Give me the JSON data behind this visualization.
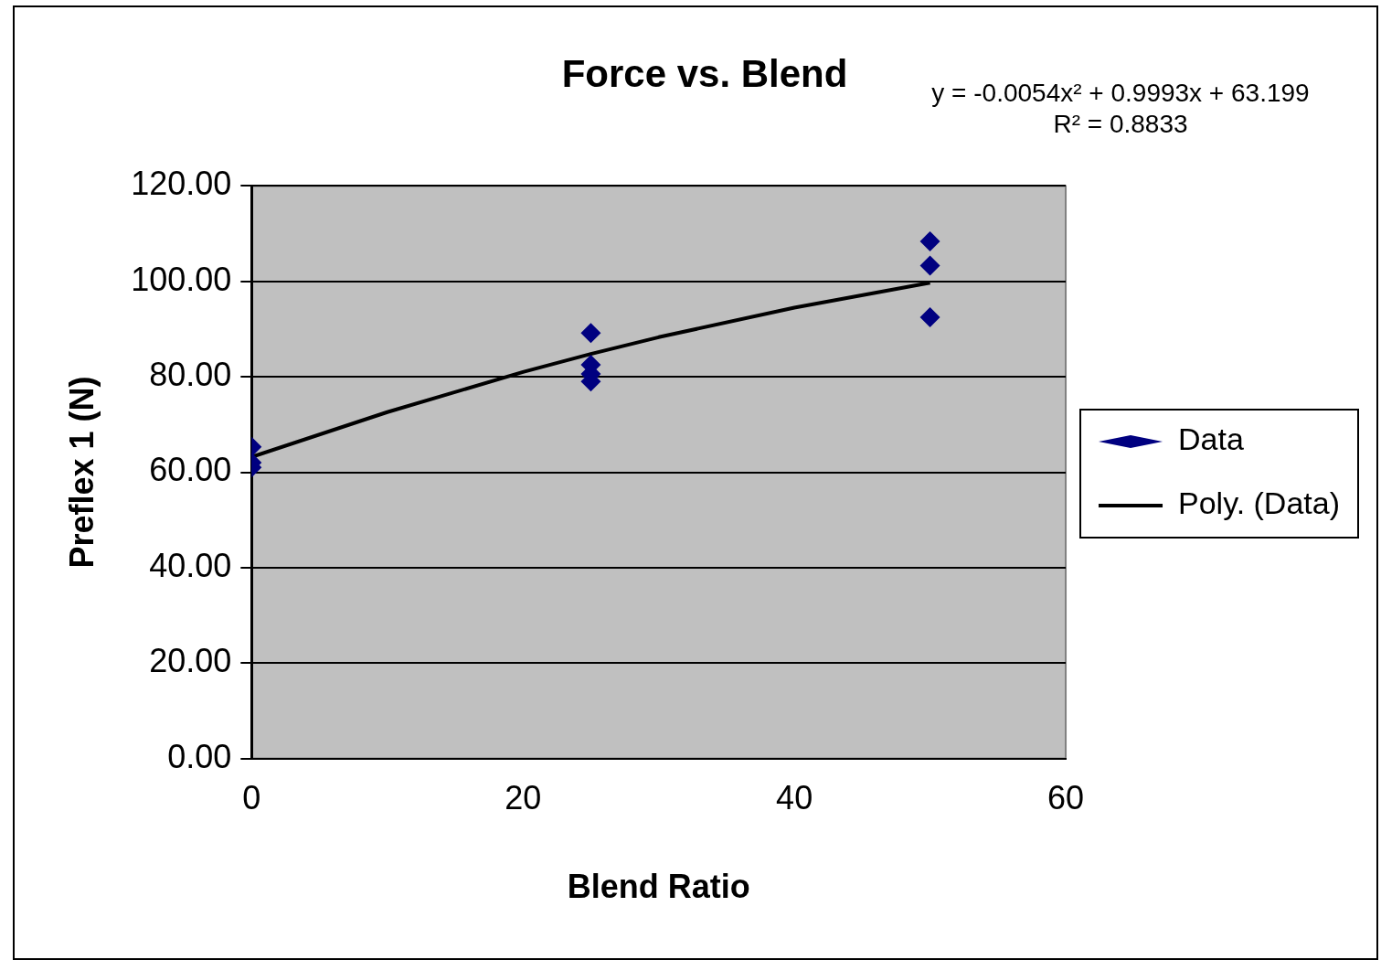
{
  "chart_data": {
    "type": "scatter",
    "title": "Force vs. Blend",
    "xlabel": "Blend Ratio",
    "ylabel": "Preflex 1 (N)",
    "xlim": [
      0,
      60
    ],
    "xticks": [
      0,
      20,
      40,
      60
    ],
    "ylim": [
      0,
      120
    ],
    "yticks": [
      {
        "value": 0,
        "label": "0.00"
      },
      {
        "value": 20,
        "label": "20.00"
      },
      {
        "value": 40,
        "label": "40.00"
      },
      {
        "value": 60,
        "label": "60.00"
      },
      {
        "value": 80,
        "label": "80.00"
      },
      {
        "value": 100,
        "label": "100.00"
      },
      {
        "value": 120,
        "label": "120.00"
      }
    ],
    "grid": "y",
    "legend": "right",
    "marker": "diamond",
    "annotations": [
      "y = -0.0054x² + 0.9993x + 63.199",
      "R² = 0.8833"
    ],
    "series": [
      {
        "name": "Data",
        "color": "#000080",
        "x": [
          0,
          0,
          0,
          25,
          25,
          25,
          25,
          50,
          50,
          50
        ],
        "values": [
          65.3,
          62,
          61,
          89.2,
          82.5,
          80.6,
          79,
          108.4,
          103.3,
          92.5
        ]
      },
      {
        "name": "Poly. (Data)",
        "type": "line",
        "color": "#000000",
        "marker": "none",
        "line_style": "solid",
        "x": [
          0,
          10,
          20,
          25,
          30,
          40,
          50
        ],
        "values": [
          63.2,
          72.6,
          81,
          84.8,
          88.3,
          94.5,
          99.7
        ]
      }
    ]
  }
}
